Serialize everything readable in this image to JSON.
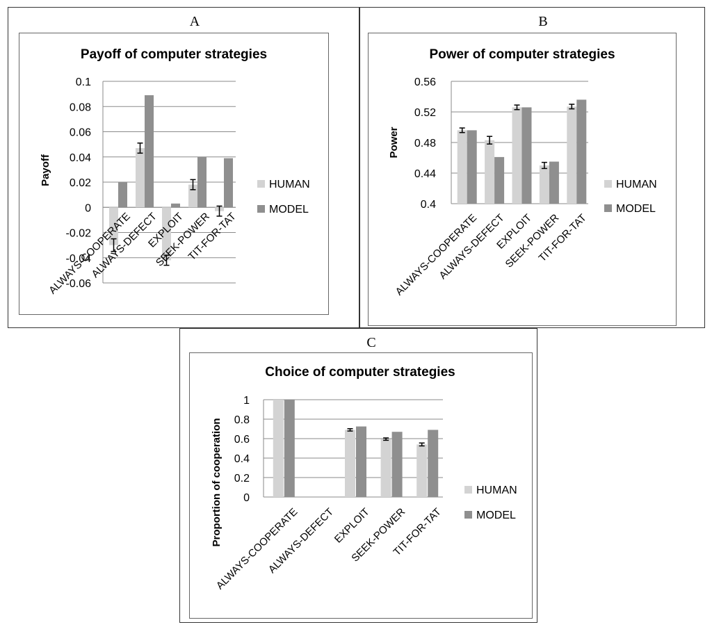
{
  "panels": [
    {
      "letter": "A"
    },
    {
      "letter": "B"
    },
    {
      "letter": "C"
    }
  ],
  "chart_data": [
    {
      "type": "bar",
      "title": "Payoff of computer strategies",
      "xlabel": "",
      "ylabel": "Payoff",
      "categories": [
        "ALWAYS-COOPERATE",
        "ALWAYS-DEFECT",
        "EXPLOIT",
        "SEEK-POWER",
        "TIT-FOR-TAT"
      ],
      "series": [
        {
          "name": "HUMAN",
          "values": [
            -0.03,
            0.047,
            -0.042,
            0.018,
            -0.003
          ],
          "errors": [
            0.005,
            0.004,
            0.004,
            0.004,
            0.004
          ]
        },
        {
          "name": "MODEL",
          "values": [
            0.02,
            0.089,
            0.003,
            0.04,
            0.039
          ],
          "errors": null
        }
      ],
      "yticks": [
        "0.1",
        "0.08",
        "0.06",
        "0.04",
        "0.02",
        "0",
        "-0.02",
        "-0.04",
        "-0.06"
      ],
      "ylim": [
        -0.06,
        0.1
      ],
      "grid": true,
      "legend": "right",
      "colors": {
        "HUMAN": "#d3d3d3",
        "MODEL": "#8f8f8f"
      }
    },
    {
      "type": "bar",
      "title": "Power of computer strategies",
      "xlabel": "",
      "ylabel": "Power",
      "categories": [
        "ALWAYS-COOPERATE",
        "ALWAYS-DEFECT",
        "EXPLOIT",
        "SEEK-POWER",
        "TIT-FOR-TAT"
      ],
      "series": [
        {
          "name": "HUMAN",
          "values": [
            0.496,
            0.483,
            0.526,
            0.45,
            0.527
          ],
          "errors": [
            0.003,
            0.005,
            0.003,
            0.004,
            0.003
          ]
        },
        {
          "name": "MODEL",
          "values": [
            0.496,
            0.461,
            0.526,
            0.455,
            0.536
          ],
          "errors": null
        }
      ],
      "yticks": [
        "0.56",
        "0.52",
        "0.48",
        "0.44",
        "0.4"
      ],
      "ylim": [
        0.4,
        0.56
      ],
      "grid": true,
      "legend": "right",
      "colors": {
        "HUMAN": "#d3d3d3",
        "MODEL": "#8f8f8f"
      }
    },
    {
      "type": "bar",
      "title": "Choice of computer strategies",
      "xlabel": "",
      "ylabel": "Proportion of cooperation",
      "categories": [
        "ALWAYS-COOPERATE",
        "ALWAYS-DEFECT",
        "EXPLOIT",
        "SEEK-POWER",
        "TIT-FOR-TAT"
      ],
      "series": [
        {
          "name": "HUMAN",
          "values": [
            1,
            0,
            0.69,
            0.595,
            0.54
          ],
          "errors": [
            0,
            0,
            0.012,
            0.012,
            0.015
          ]
        },
        {
          "name": "MODEL",
          "values": [
            1,
            0,
            0.725,
            0.67,
            0.69
          ],
          "errors": null
        }
      ],
      "yticks": [
        "1",
        "0.8",
        "0.6",
        "0.4",
        "0.2",
        "0"
      ],
      "ylim": [
        0,
        1
      ],
      "grid": true,
      "legend": "right",
      "colors": {
        "HUMAN": "#d3d3d3",
        "MODEL": "#8f8f8f"
      }
    }
  ]
}
